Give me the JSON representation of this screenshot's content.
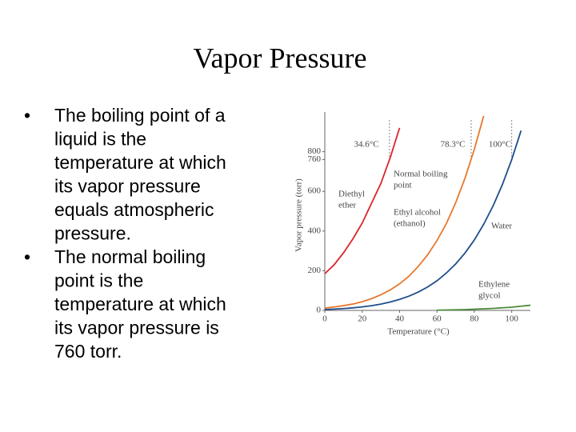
{
  "title": "Vapor Pressure",
  "bullets": [
    [
      "The boiling point of a",
      "liquid is the",
      "temperature at which",
      "its vapor pressure",
      "equals atmospheric",
      "pressure."
    ],
    [
      "The normal boiling",
      "point is the",
      "temperature at which",
      "its vapor pressure is",
      "760 torr."
    ]
  ],
  "chart_data": {
    "type": "line",
    "xlabel": "Temperature (°C)",
    "ylabel": "Vapor pressure (torr)",
    "x": [
      0,
      5,
      10,
      15,
      20,
      25,
      30,
      35,
      40,
      45,
      50,
      55,
      60,
      65,
      70,
      75,
      80,
      85,
      90,
      95,
      100,
      105,
      110
    ],
    "series": [
      {
        "name": [
          "Diethyl",
          "ether"
        ],
        "color": "#d9262b",
        "values": [
          185,
          230,
          290,
          360,
          440,
          540,
          640,
          770,
          920,
          null,
          null,
          null,
          null,
          null,
          null,
          null,
          null,
          null,
          null,
          null,
          null,
          null,
          null
        ]
      },
      {
        "name": [
          "Ethyl alcohol",
          "(ethanol)"
        ],
        "color": "#e8782a",
        "values": [
          12,
          17,
          24,
          32,
          44,
          59,
          79,
          103,
          134,
          172,
          222,
          280,
          352,
          437,
          542,
          666,
          812,
          980,
          null,
          null,
          null,
          null,
          null
        ]
      },
      {
        "name": [
          "Water"
        ],
        "color": "#1f4e8c",
        "values": [
          4.6,
          6.5,
          9.2,
          12.8,
          17.5,
          23.8,
          31.8,
          42.2,
          55.3,
          71.9,
          92.5,
          118,
          149,
          188,
          234,
          289,
          355,
          434,
          526,
          634,
          760,
          906,
          null
        ]
      },
      {
        "name": [
          "Ethylene",
          "glycol"
        ],
        "color": "#4a8a3a",
        "values": [
          null,
          null,
          null,
          null,
          null,
          null,
          null,
          null,
          null,
          null,
          null,
          null,
          1,
          2,
          3,
          4,
          6,
          8,
          10,
          13,
          16,
          21,
          26
        ]
      }
    ],
    "boiling_points": [
      {
        "value": 34.6,
        "label": "34.6°C"
      },
      {
        "value": 78.3,
        "label": "78.3°C"
      },
      {
        "value": 100,
        "label": "100°C"
      }
    ],
    "boiling_note": [
      "Normal boiling",
      "point"
    ],
    "xlim": [
      0,
      110
    ],
    "ylim": [
      0,
      1000
    ],
    "xticks": [
      0,
      20,
      40,
      60,
      80,
      100
    ],
    "yticks": [
      0,
      200,
      400,
      600,
      760,
      800
    ]
  }
}
